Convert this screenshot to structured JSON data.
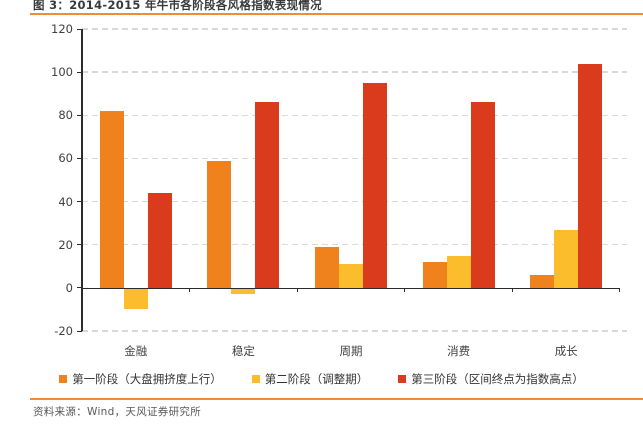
{
  "header": {
    "title": "图 3：2014-2015 年牛市各阶段各风格指数表现情况"
  },
  "footer": {
    "source": "资料来源：Wind，天风证券研究所"
  },
  "colors": {
    "rule_orange": "#EE8C38",
    "grid": "#D8D8D8",
    "axis": "#2B2B2B",
    "series_colors": [
      "#F0821E",
      "#FBBD2B",
      "#D93B1C"
    ]
  },
  "chart_data": {
    "type": "bar",
    "title": "图 3：2014-2015 年牛市各阶段各风格指数表现情况",
    "categories": [
      "金融",
      "稳定",
      "周期",
      "消费",
      "成长"
    ],
    "series": [
      {
        "name": "第一阶段（大盘拥挤度上行）",
        "color": "#F0821E",
        "values": [
          82,
          59,
          19,
          12,
          6
        ]
      },
      {
        "name": "第二阶段（调整期）",
        "color": "#FBBD2B",
        "values": [
          -10,
          -3,
          11,
          15,
          27
        ]
      },
      {
        "name": "第三阶段（区间终点为指数高点）",
        "color": "#D93B1C",
        "values": [
          44,
          86,
          95,
          86,
          104
        ]
      }
    ],
    "xlabel": "",
    "ylabel": "",
    "ylim": [
      -20,
      120
    ],
    "ytick_step": 20,
    "yticks": [
      -20,
      0,
      20,
      40,
      60,
      80,
      100,
      120
    ],
    "grid": true,
    "gridline_style": "dashed",
    "legend_position": "bottom"
  }
}
